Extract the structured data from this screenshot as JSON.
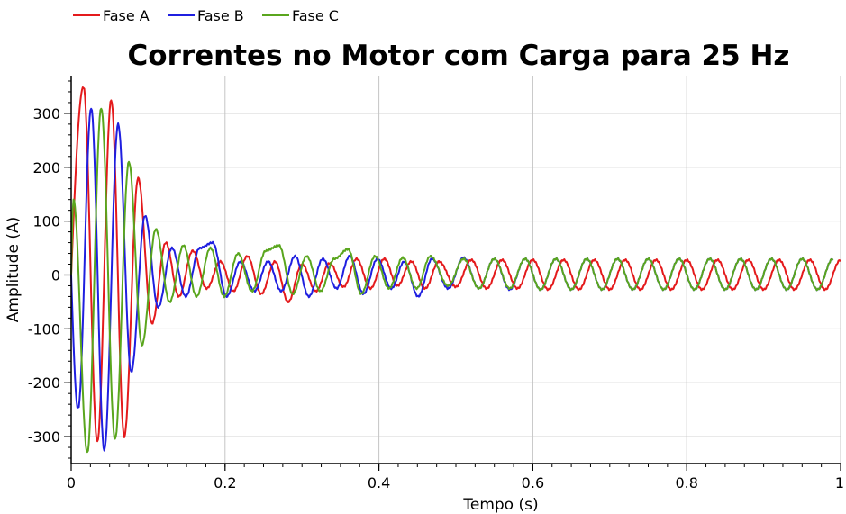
{
  "chart_data": {
    "type": "line",
    "title": "Correntes no Motor com Carga para 25 Hz",
    "xlabel": "Tempo (s)",
    "ylabel": "Amplitude (A)",
    "xlim": [
      0,
      1
    ],
    "ylim": [
      -350,
      370
    ],
    "x_ticks": [
      0,
      0.2,
      0.4,
      0.6,
      0.8,
      1
    ],
    "x_tick_labels": [
      "0",
      "0.2",
      "0.4",
      "0.6",
      "0.8",
      "1"
    ],
    "y_ticks": [
      -300,
      -200,
      -100,
      0,
      100,
      200,
      300
    ],
    "y_tick_labels": [
      "-300",
      "-200",
      "-100",
      "0",
      "100",
      "200",
      "300"
    ],
    "grid": true,
    "legend_position": "top-left",
    "sample_interval_s": 0.002,
    "series": [
      {
        "name": "Fase A",
        "color": "#e41a1c",
        "extrema": [
          [
            0.016,
            350
          ],
          [
            0.034,
            -310
          ],
          [
            0.052,
            325
          ],
          [
            0.069,
            -300
          ],
          [
            0.087,
            180
          ],
          [
            0.105,
            -90
          ],
          [
            0.123,
            60
          ],
          [
            0.14,
            -40
          ],
          [
            0.158,
            45
          ],
          [
            0.176,
            -25
          ],
          [
            0.194,
            25
          ],
          [
            0.211,
            -30
          ],
          [
            0.229,
            35
          ],
          [
            0.247,
            -35
          ],
          [
            0.265,
            25
          ],
          [
            0.282,
            -50
          ],
          [
            0.3,
            20
          ],
          [
            0.318,
            -30
          ],
          [
            0.336,
            22
          ],
          [
            0.354,
            -22
          ],
          [
            0.371,
            30
          ],
          [
            0.389,
            -25
          ],
          [
            0.407,
            30
          ],
          [
            0.424,
            -20
          ],
          [
            0.442,
            25
          ],
          [
            0.46,
            -25
          ],
          [
            0.478,
            25
          ],
          [
            0.5,
            -22
          ],
          [
            0.52,
            28
          ],
          [
            0.54,
            -25
          ],
          [
            0.56,
            28
          ],
          [
            0.58,
            -25
          ],
          [
            0.6,
            28
          ],
          [
            0.62,
            -27
          ],
          [
            0.64,
            28
          ],
          [
            0.66,
            -27
          ],
          [
            0.68,
            28
          ],
          [
            0.7,
            -27
          ],
          [
            0.72,
            28
          ],
          [
            0.74,
            -27
          ],
          [
            0.76,
            28
          ],
          [
            0.78,
            -27
          ],
          [
            0.8,
            28
          ],
          [
            0.82,
            -27
          ],
          [
            0.84,
            28
          ],
          [
            0.86,
            -27
          ],
          [
            0.88,
            28
          ],
          [
            0.9,
            -27
          ],
          [
            0.92,
            28
          ],
          [
            0.94,
            -27
          ],
          [
            0.96,
            28
          ],
          [
            0.98,
            -27
          ],
          [
            1.0,
            28
          ]
        ]
      },
      {
        "name": "Fase B",
        "color": "#1f1fe0",
        "extrema": [
          [
            0.009,
            -250
          ],
          [
            0.026,
            310
          ],
          [
            0.043,
            -325
          ],
          [
            0.061,
            280
          ],
          [
            0.078,
            -180
          ],
          [
            0.096,
            110
          ],
          [
            0.113,
            -60
          ],
          [
            0.131,
            50
          ],
          [
            0.149,
            -40
          ],
          [
            0.167,
            50
          ],
          [
            0.184,
            60
          ],
          [
            0.202,
            -40
          ],
          [
            0.22,
            25
          ],
          [
            0.238,
            -30
          ],
          [
            0.256,
            25
          ],
          [
            0.273,
            -30
          ],
          [
            0.291,
            35
          ],
          [
            0.309,
            -40
          ],
          [
            0.327,
            30
          ],
          [
            0.345,
            -25
          ],
          [
            0.362,
            35
          ],
          [
            0.38,
            -35
          ],
          [
            0.398,
            30
          ],
          [
            0.416,
            -25
          ],
          [
            0.433,
            25
          ],
          [
            0.451,
            -40
          ],
          [
            0.469,
            30
          ],
          [
            0.49,
            -25
          ],
          [
            0.51,
            32
          ],
          [
            0.53,
            -25
          ],
          [
            0.55,
            30
          ],
          [
            0.57,
            -27
          ],
          [
            0.59,
            30
          ],
          [
            0.61,
            -27
          ],
          [
            0.63,
            30
          ],
          [
            0.65,
            -27
          ],
          [
            0.67,
            30
          ],
          [
            0.69,
            -27
          ],
          [
            0.71,
            30
          ],
          [
            0.73,
            -27
          ],
          [
            0.75,
            30
          ],
          [
            0.77,
            -27
          ],
          [
            0.79,
            30
          ],
          [
            0.81,
            -27
          ],
          [
            0.83,
            30
          ],
          [
            0.85,
            -27
          ],
          [
            0.87,
            30
          ],
          [
            0.89,
            -27
          ],
          [
            0.91,
            30
          ],
          [
            0.93,
            -27
          ],
          [
            0.95,
            30
          ],
          [
            0.97,
            -27
          ],
          [
            0.99,
            30
          ]
        ]
      },
      {
        "name": "Fase C",
        "color": "#5aa61e",
        "extrema": [
          [
            0.003,
            140
          ],
          [
            0.021,
            -330
          ],
          [
            0.039,
            310
          ],
          [
            0.057,
            -305
          ],
          [
            0.075,
            210
          ],
          [
            0.092,
            -130
          ],
          [
            0.11,
            85
          ],
          [
            0.128,
            -50
          ],
          [
            0.146,
            55
          ],
          [
            0.163,
            -40
          ],
          [
            0.181,
            50
          ],
          [
            0.199,
            -40
          ],
          [
            0.217,
            40
          ],
          [
            0.235,
            -30
          ],
          [
            0.253,
            45
          ],
          [
            0.27,
            55
          ],
          [
            0.288,
            -35
          ],
          [
            0.306,
            35
          ],
          [
            0.324,
            -30
          ],
          [
            0.342,
            30
          ],
          [
            0.36,
            48
          ],
          [
            0.377,
            -35
          ],
          [
            0.395,
            35
          ],
          [
            0.413,
            -25
          ],
          [
            0.431,
            32
          ],
          [
            0.449,
            -25
          ],
          [
            0.467,
            35
          ],
          [
            0.49,
            -20
          ],
          [
            0.51,
            30
          ],
          [
            0.53,
            -25
          ],
          [
            0.55,
            30
          ],
          [
            0.57,
            -25
          ],
          [
            0.59,
            30
          ],
          [
            0.61,
            -27
          ],
          [
            0.63,
            30
          ],
          [
            0.65,
            -27
          ],
          [
            0.67,
            30
          ],
          [
            0.69,
            -27
          ],
          [
            0.71,
            30
          ],
          [
            0.73,
            -27
          ],
          [
            0.75,
            30
          ],
          [
            0.77,
            -27
          ],
          [
            0.79,
            30
          ],
          [
            0.81,
            -27
          ],
          [
            0.83,
            30
          ],
          [
            0.85,
            -27
          ],
          [
            0.87,
            30
          ],
          [
            0.89,
            -27
          ],
          [
            0.91,
            30
          ],
          [
            0.93,
            -27
          ],
          [
            0.95,
            30
          ],
          [
            0.97,
            -27
          ],
          [
            0.99,
            30
          ]
        ]
      }
    ]
  }
}
